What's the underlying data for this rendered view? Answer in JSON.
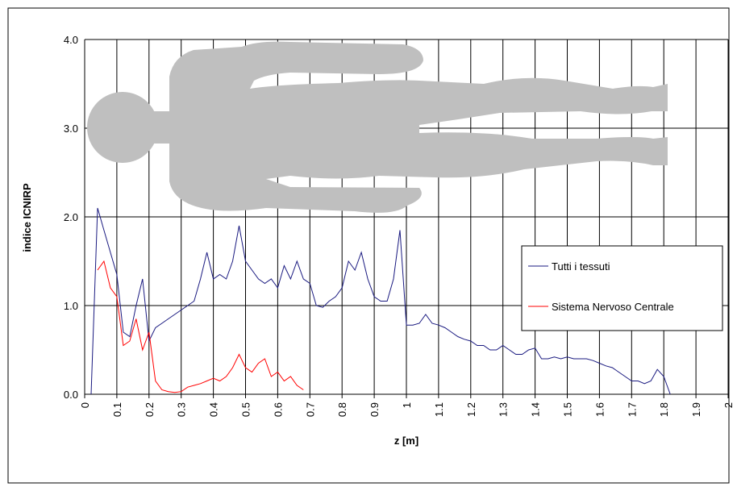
{
  "chart_data": {
    "type": "line",
    "xlabel": "z [m]",
    "ylabel": "indice ICNIRP",
    "x": [
      0.02,
      0.04,
      0.06,
      0.08,
      0.1,
      0.12,
      0.14,
      0.16,
      0.18,
      0.2,
      0.22,
      0.24,
      0.26,
      0.28,
      0.3,
      0.32,
      0.34,
      0.36,
      0.38,
      0.4,
      0.42,
      0.44,
      0.46,
      0.48,
      0.5,
      0.52,
      0.54,
      0.56,
      0.58,
      0.6,
      0.62,
      0.64,
      0.66,
      0.68,
      0.7,
      0.72,
      0.74,
      0.76,
      0.78,
      0.8,
      0.82,
      0.84,
      0.86,
      0.88,
      0.9,
      0.92,
      0.94,
      0.96,
      0.98,
      1.0,
      1.02,
      1.04,
      1.06,
      1.08,
      1.1,
      1.12,
      1.14,
      1.16,
      1.18,
      1.2,
      1.22,
      1.24,
      1.26,
      1.28,
      1.3,
      1.32,
      1.34,
      1.36,
      1.38,
      1.4,
      1.42,
      1.44,
      1.46,
      1.48,
      1.5,
      1.52,
      1.54,
      1.56,
      1.58,
      1.6,
      1.62,
      1.64,
      1.66,
      1.68,
      1.7,
      1.72,
      1.74,
      1.76,
      1.78,
      1.8,
      1.82
    ],
    "series": [
      {
        "name": "Tutti i tessuti",
        "color": "#1a1a80",
        "values": [
          0.0,
          2.1,
          1.85,
          1.6,
          1.35,
          0.7,
          0.65,
          1.0,
          1.3,
          0.6,
          0.75,
          0.8,
          0.85,
          0.9,
          0.95,
          1.0,
          1.05,
          1.3,
          1.6,
          1.3,
          1.35,
          1.3,
          1.5,
          1.9,
          1.5,
          1.4,
          1.3,
          1.25,
          1.3,
          1.2,
          1.45,
          1.3,
          1.5,
          1.3,
          1.25,
          1.0,
          0.98,
          1.05,
          1.1,
          1.2,
          1.5,
          1.4,
          1.6,
          1.3,
          1.1,
          1.05,
          1.05,
          1.3,
          1.85,
          0.78,
          0.78,
          0.8,
          0.9,
          0.8,
          0.78,
          0.75,
          0.7,
          0.65,
          0.62,
          0.6,
          0.55,
          0.55,
          0.5,
          0.5,
          0.55,
          0.5,
          0.45,
          0.45,
          0.5,
          0.52,
          0.4,
          0.4,
          0.42,
          0.4,
          0.42,
          0.4,
          0.4,
          0.4,
          0.38,
          0.35,
          0.32,
          0.3,
          0.25,
          0.2,
          0.15,
          0.15,
          0.12,
          0.15,
          0.28,
          0.2,
          0.0
        ]
      },
      {
        "name": "Sistema Nervoso Centrale",
        "color": "#ff0000",
        "values": [
          null,
          1.4,
          1.5,
          1.2,
          1.1,
          0.55,
          0.6,
          0.85,
          0.5,
          0.7,
          0.15,
          0.05,
          0.03,
          0.02,
          0.03,
          0.08,
          0.1,
          0.12,
          0.15,
          0.18,
          0.15,
          0.2,
          0.3,
          0.45,
          0.3,
          0.25,
          0.35,
          0.4,
          0.2,
          0.25,
          0.15,
          0.2,
          0.1,
          0.05,
          null,
          null,
          null,
          null,
          null,
          null,
          null,
          null,
          null,
          null,
          null,
          null,
          null,
          null,
          null,
          null,
          null,
          null,
          null,
          null,
          null,
          null,
          null,
          null,
          null,
          null,
          null,
          null,
          null,
          null,
          null,
          null,
          null,
          null,
          null,
          null,
          null,
          null,
          null,
          null,
          null,
          null,
          null,
          null,
          null,
          null,
          null,
          null,
          null,
          null,
          null,
          null,
          null,
          null,
          null,
          null,
          null
        ]
      }
    ],
    "xlim": [
      0,
      2
    ],
    "xticks": [
      0,
      0.1,
      0.2,
      0.3,
      0.4,
      0.5,
      0.6,
      0.7,
      0.8,
      0.9,
      1,
      1.1,
      1.2,
      1.3,
      1.4,
      1.5,
      1.6,
      1.7,
      1.8,
      1.9,
      2
    ],
    "ylim": [
      0,
      4
    ],
    "yticks": [
      {
        "value": 0,
        "label": "0.0"
      },
      {
        "value": 1,
        "label": "1.0"
      },
      {
        "value": 2,
        "label": "2.0"
      },
      {
        "value": 3,
        "label": "3.0"
      },
      {
        "value": 4,
        "label": "4.0"
      }
    ],
    "grid": true,
    "legend": "right"
  }
}
